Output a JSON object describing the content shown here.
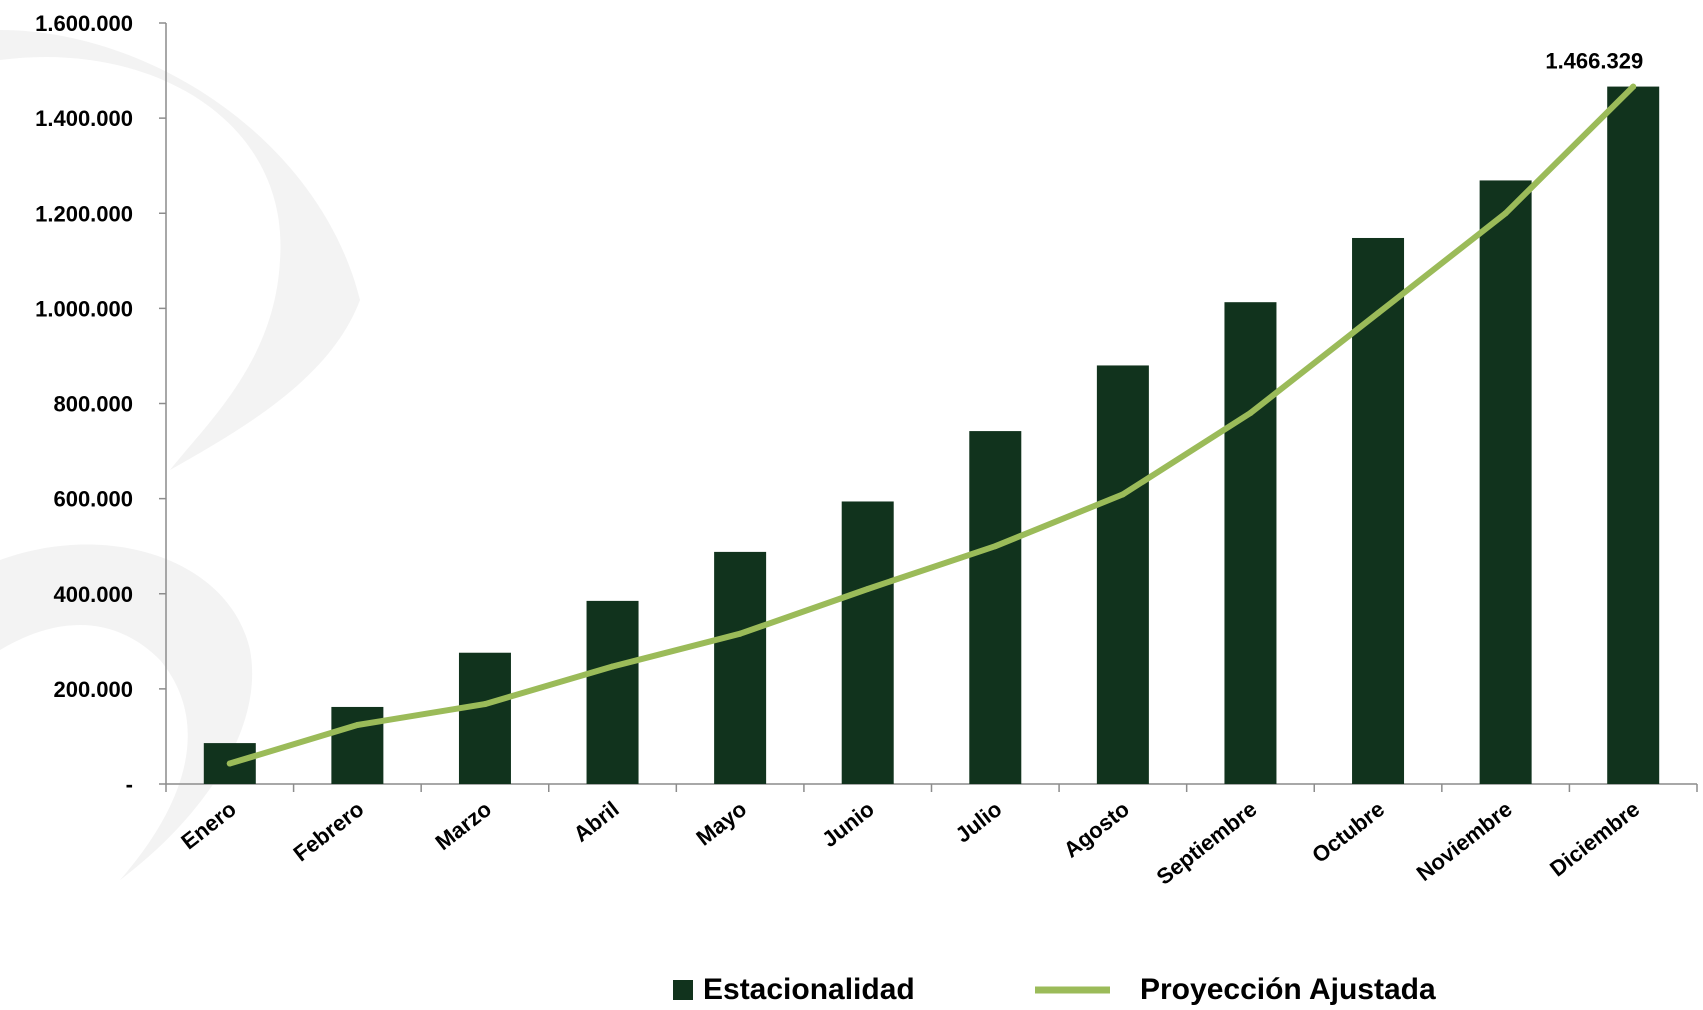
{
  "chart_data": {
    "type": "bar",
    "title": "",
    "xlabel": "",
    "ylabel": "",
    "ylim": [
      0,
      1600000
    ],
    "y_ticks": [
      0,
      200000,
      400000,
      600000,
      800000,
      1000000,
      1200000,
      1400000,
      1600000
    ],
    "y_tick_labels": [
      "-",
      "200.000",
      "400.000",
      "600.000",
      "800.000",
      "1.000.000",
      "1.200.000",
      "1.400.000",
      "1.600.000"
    ],
    "categories": [
      "Enero",
      "Febrero",
      "Marzo",
      "Abril",
      "Mayo",
      "Junio",
      "Julio",
      "Agosto",
      "Septiembre",
      "Octubre",
      "Noviembre",
      "Diciembre"
    ],
    "series": [
      {
        "name": "Estacionalidad",
        "type": "bar",
        "color": "#11331d",
        "values": [
          86000,
          162000,
          276000,
          385000,
          488000,
          594000,
          742000,
          880000,
          1013000,
          1148000,
          1269000,
          1466329
        ]
      },
      {
        "name": "Proyección Ajustada",
        "type": "line",
        "color": "#9bbb59",
        "values": [
          43000,
          124000,
          168000,
          247000,
          316000,
          410000,
          500000,
          609000,
          780000,
          990000,
          1200000,
          1466329
        ]
      }
    ],
    "data_labels": [
      {
        "category": "Diciembre",
        "text": "1.466.329"
      }
    ],
    "grid": false,
    "legend": {
      "position": "bottom"
    },
    "colors": {
      "axis": "#8c8c8c",
      "text": "#000000",
      "watermark": "#f2f2f2"
    }
  }
}
